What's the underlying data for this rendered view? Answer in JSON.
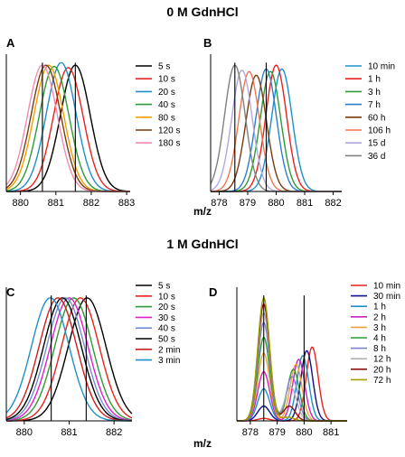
{
  "figure": {
    "section_top_title": "0 M GdnHCl",
    "section_bottom_title": "1 M GdnHCl",
    "xlabel_top": "m/z",
    "xlabel_bottom": "m/z"
  },
  "chart_data": [
    {
      "panel": "A",
      "type": "line",
      "xlim": [
        879.6,
        883.1
      ],
      "xticks": [
        "880",
        "881",
        "882",
        "883"
      ],
      "xtick_values": [
        880,
        881,
        882,
        883
      ],
      "peak_width": 0.42,
      "legend": [
        "5 s",
        "10 s",
        "20 s",
        "40 s",
        "80 s",
        "120 s",
        "180 s"
      ],
      "colors": [
        "#000000",
        "#e8221c",
        "#1e90c8",
        "#2e9a38",
        "#f0a000",
        "#7a3a10",
        "#f08cb4"
      ],
      "series": [
        {
          "name": "5 s",
          "peaks": [
            {
              "center": 881.55,
              "height": 1.0
            }
          ]
        },
        {
          "name": "10 s",
          "peaks": [
            {
              "center": 881.35,
              "height": 0.98
            }
          ]
        },
        {
          "name": "20 s",
          "peaks": [
            {
              "center": 881.15,
              "height": 1.02
            }
          ]
        },
        {
          "name": "40 s",
          "peaks": [
            {
              "center": 880.95,
              "height": 0.99
            }
          ]
        },
        {
          "name": "80 s",
          "peaks": [
            {
              "center": 880.8,
              "height": 1.0
            }
          ]
        },
        {
          "name": "120 s",
          "peaks": [
            {
              "center": 880.72,
              "height": 1.0
            }
          ]
        },
        {
          "name": "180 s",
          "peaks": [
            {
              "center": 880.62,
              "height": 1.0
            }
          ]
        }
      ],
      "markers": [
        880.62,
        881.55
      ]
    },
    {
      "panel": "B",
      "type": "line",
      "xlim": [
        877.7,
        882.3
      ],
      "xticks": [
        "878",
        "879",
        "880",
        "881",
        "882"
      ],
      "xtick_values": [
        878,
        879,
        880,
        881,
        882
      ],
      "peak_width": 0.36,
      "legend": [
        "10 min",
        "1 h",
        "3 h",
        "7 h",
        "60 h",
        "106 h",
        "15 d",
        "36 d"
      ],
      "colors": [
        "#1e90c8",
        "#e8221c",
        "#2e9a38",
        "#2e7fd0",
        "#7a3a10",
        "#f07850",
        "#b2a8e0",
        "#808080"
      ],
      "series": [
        {
          "name": "10 min",
          "peaks": [
            {
              "center": 880.2,
              "height": 0.97
            }
          ]
        },
        {
          "name": "1 h",
          "peaks": [
            {
              "center": 880.0,
              "height": 1.0
            }
          ]
        },
        {
          "name": "3 h",
          "peaks": [
            {
              "center": 879.8,
              "height": 0.95
            }
          ]
        },
        {
          "name": "7 h",
          "peaks": [
            {
              "center": 879.65,
              "height": 0.97
            }
          ]
        },
        {
          "name": "60 h",
          "peaks": [
            {
              "center": 879.3,
              "height": 0.92
            }
          ]
        },
        {
          "name": "106 h",
          "peaks": [
            {
              "center": 879.05,
              "height": 0.95
            }
          ]
        },
        {
          "name": "15 d",
          "peaks": [
            {
              "center": 878.8,
              "height": 0.96
            }
          ]
        },
        {
          "name": "36 d",
          "peaks": [
            {
              "center": 878.55,
              "height": 1.0
            }
          ]
        }
      ],
      "markers": [
        878.55,
        879.65
      ]
    },
    {
      "panel": "C",
      "type": "line",
      "xlim": [
        879.6,
        882.4
      ],
      "xticks": [
        "880",
        "881",
        "882"
      ],
      "xtick_values": [
        880,
        881,
        882
      ],
      "peak_width": 0.42,
      "legend": [
        "5 s",
        "10 s",
        "20 s",
        "30 s",
        "40 s",
        "50 s",
        "2 min",
        "3 min"
      ],
      "colors": [
        "#000000",
        "#e8221c",
        "#2e9a38",
        "#e020c8",
        "#7090d0",
        "#000000",
        "#cc2020",
        "#1e90c8"
      ],
      "series": [
        {
          "name": "5 s",
          "peaks": [
            {
              "center": 881.4,
              "height": 1.0
            }
          ]
        },
        {
          "name": "10 s",
          "peaks": [
            {
              "center": 881.25,
              "height": 1.0
            }
          ]
        },
        {
          "name": "20 s",
          "peaks": [
            {
              "center": 881.1,
              "height": 1.0
            }
          ]
        },
        {
          "name": "30 s",
          "peaks": [
            {
              "center": 881.0,
              "height": 1.0
            }
          ]
        },
        {
          "name": "40 s",
          "peaks": [
            {
              "center": 880.92,
              "height": 1.0
            }
          ]
        },
        {
          "name": "50 s",
          "peaks": [
            {
              "center": 880.85,
              "height": 1.0
            }
          ]
        },
        {
          "name": "2 min",
          "peaks": [
            {
              "center": 880.75,
              "height": 1.0
            }
          ]
        },
        {
          "name": "3 min",
          "peaks": [
            {
              "center": 880.58,
              "height": 1.0
            }
          ]
        }
      ],
      "markers": [
        880.6,
        881.38
      ]
    },
    {
      "panel": "D",
      "type": "line",
      "xlim": [
        877.5,
        881.6
      ],
      "xticks": [
        "878",
        "879",
        "880",
        "881"
      ],
      "xtick_values": [
        878,
        879,
        880,
        881
      ],
      "peak_width": 0.22,
      "legend": [
        "10 min",
        "30 min",
        "1 h",
        "2 h",
        "3 h",
        "4 h",
        "8 h",
        "12 h",
        "20 h",
        "72 h"
      ],
      "colors": [
        "#e8221c",
        "#101090",
        "#1e90c8",
        "#cc20c0",
        "#f0a040",
        "#2e9a38",
        "#8080d0",
        "#b0b0b0",
        "#8b1010",
        "#a0a000"
      ],
      "series": [
        {
          "name": "10 min",
          "peaks": [
            {
              "center": 880.3,
              "height": 0.6
            },
            {
              "center": 878.5,
              "height": 0.02
            }
          ]
        },
        {
          "name": "30 min",
          "peaks": [
            {
              "center": 880.1,
              "height": 0.57
            },
            {
              "center": 878.5,
              "height": 0.12
            }
          ]
        },
        {
          "name": "1 h",
          "peaks": [
            {
              "center": 879.95,
              "height": 0.53
            },
            {
              "center": 878.5,
              "height": 0.26
            }
          ]
        },
        {
          "name": "2 h",
          "peaks": [
            {
              "center": 879.8,
              "height": 0.5
            },
            {
              "center": 878.5,
              "height": 0.4
            }
          ]
        },
        {
          "name": "3 h",
          "peaks": [
            {
              "center": 879.7,
              "height": 0.46
            },
            {
              "center": 878.5,
              "height": 0.55
            }
          ]
        },
        {
          "name": "4 h",
          "peaks": [
            {
              "center": 879.6,
              "height": 0.42
            },
            {
              "center": 878.5,
              "height": 0.68
            }
          ]
        },
        {
          "name": "8 h",
          "peaks": [
            {
              "center": 879.55,
              "height": 0.36
            },
            {
              "center": 878.5,
              "height": 0.8
            }
          ]
        },
        {
          "name": "12 h",
          "peaks": [
            {
              "center": 879.5,
              "height": 0.28
            },
            {
              "center": 878.5,
              "height": 0.88
            }
          ]
        },
        {
          "name": "20 h",
          "peaks": [
            {
              "center": 879.45,
              "height": 0.12
            },
            {
              "center": 878.5,
              "height": 0.95
            }
          ]
        },
        {
          "name": "72 h",
          "peaks": [
            {
              "center": 879.4,
              "height": 0.03
            },
            {
              "center": 878.5,
              "height": 1.0
            }
          ]
        }
      ],
      "markers": [
        878.5,
        880.0
      ]
    }
  ]
}
